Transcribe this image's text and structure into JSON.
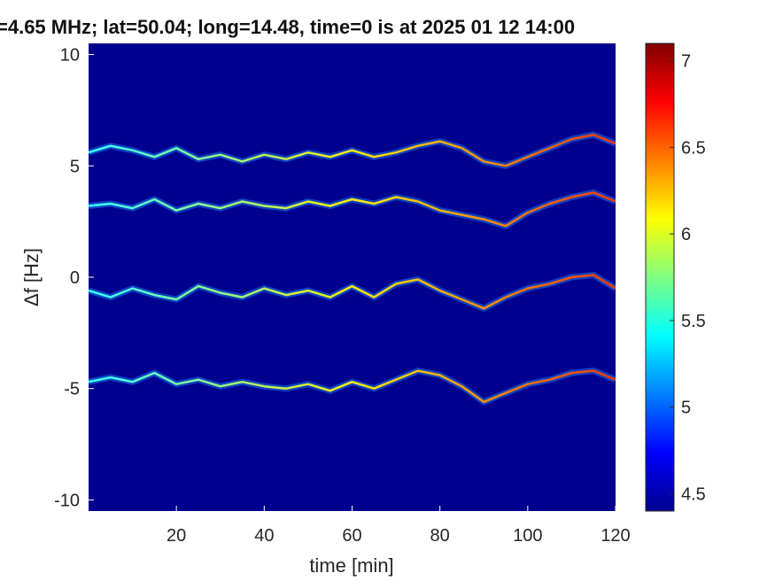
{
  "chart_data": {
    "type": "heatmap",
    "title": "=4.65 MHz;  lat=50.04; long=14.48, time=0 is at 2025 01 12 14:00",
    "xlabel": "time [min]",
    "ylabel": "Δf [Hz]",
    "xlim": [
      0,
      120
    ],
    "ylim": [
      -10.5,
      10.5
    ],
    "x_ticks": [
      20,
      40,
      60,
      80,
      100,
      120
    ],
    "y_ticks": [
      10,
      5,
      0,
      -5,
      -10
    ],
    "colorbar": {
      "range": [
        4.4,
        7.1
      ],
      "ticks": [
        7,
        6.5,
        6,
        5.5,
        5,
        4.5
      ],
      "colormap": "jet"
    },
    "background_color": "#00008f",
    "traces": [
      {
        "name": "",
        "points": [
          [
            0,
            5.6
          ],
          [
            5,
            5.9
          ],
          [
            10,
            5.7
          ],
          [
            15,
            5.4
          ],
          [
            20,
            5.8
          ],
          [
            25,
            5.3
          ],
          [
            30,
            5.5
          ],
          [
            35,
            5.2
          ],
          [
            40,
            5.5
          ],
          [
            45,
            5.3
          ],
          [
            50,
            5.6
          ],
          [
            55,
            5.4
          ],
          [
            60,
            5.7
          ],
          [
            65,
            5.4
          ],
          [
            70,
            5.6
          ],
          [
            75,
            5.9
          ],
          [
            80,
            6.1
          ],
          [
            85,
            5.8
          ],
          [
            90,
            5.2
          ],
          [
            95,
            5.0
          ],
          [
            100,
            5.4
          ],
          [
            105,
            5.8
          ],
          [
            110,
            6.2
          ],
          [
            115,
            6.4
          ],
          [
            120,
            6.0
          ]
        ]
      },
      {
        "name": "",
        "points": [
          [
            0,
            3.2
          ],
          [
            5,
            3.3
          ],
          [
            10,
            3.1
          ],
          [
            15,
            3.5
          ],
          [
            20,
            3.0
          ],
          [
            25,
            3.3
          ],
          [
            30,
            3.1
          ],
          [
            35,
            3.4
          ],
          [
            40,
            3.2
          ],
          [
            45,
            3.1
          ],
          [
            50,
            3.4
          ],
          [
            55,
            3.2
          ],
          [
            60,
            3.5
          ],
          [
            65,
            3.3
          ],
          [
            70,
            3.6
          ],
          [
            75,
            3.4
          ],
          [
            80,
            3.0
          ],
          [
            85,
            2.8
          ],
          [
            90,
            2.6
          ],
          [
            95,
            2.3
          ],
          [
            100,
            2.9
          ],
          [
            105,
            3.3
          ],
          [
            110,
            3.6
          ],
          [
            115,
            3.8
          ],
          [
            120,
            3.4
          ]
        ]
      },
      {
        "name": "",
        "points": [
          [
            0,
            -0.6
          ],
          [
            5,
            -0.9
          ],
          [
            10,
            -0.5
          ],
          [
            15,
            -0.8
          ],
          [
            20,
            -1.0
          ],
          [
            25,
            -0.4
          ],
          [
            30,
            -0.7
          ],
          [
            35,
            -0.9
          ],
          [
            40,
            -0.5
          ],
          [
            45,
            -0.8
          ],
          [
            50,
            -0.6
          ],
          [
            55,
            -0.9
          ],
          [
            60,
            -0.4
          ],
          [
            65,
            -0.9
          ],
          [
            70,
            -0.3
          ],
          [
            75,
            -0.1
          ],
          [
            80,
            -0.6
          ],
          [
            85,
            -1.0
          ],
          [
            90,
            -1.4
          ],
          [
            95,
            -0.9
          ],
          [
            100,
            -0.5
          ],
          [
            105,
            -0.3
          ],
          [
            110,
            0.0
          ],
          [
            115,
            0.1
          ],
          [
            120,
            -0.5
          ]
        ]
      },
      {
        "name": "",
        "points": [
          [
            0,
            -4.7
          ],
          [
            5,
            -4.5
          ],
          [
            10,
            -4.7
          ],
          [
            15,
            -4.3
          ],
          [
            20,
            -4.8
          ],
          [
            25,
            -4.6
          ],
          [
            30,
            -4.9
          ],
          [
            35,
            -4.7
          ],
          [
            40,
            -4.9
          ],
          [
            45,
            -5.0
          ],
          [
            50,
            -4.8
          ],
          [
            55,
            -5.1
          ],
          [
            60,
            -4.7
          ],
          [
            65,
            -5.0
          ],
          [
            70,
            -4.6
          ],
          [
            75,
            -4.2
          ],
          [
            80,
            -4.4
          ],
          [
            85,
            -4.9
          ],
          [
            90,
            -5.6
          ],
          [
            95,
            -5.2
          ],
          [
            100,
            -4.8
          ],
          [
            105,
            -4.6
          ],
          [
            110,
            -4.3
          ],
          [
            115,
            -4.2
          ],
          [
            120,
            -4.6
          ]
        ]
      }
    ]
  }
}
